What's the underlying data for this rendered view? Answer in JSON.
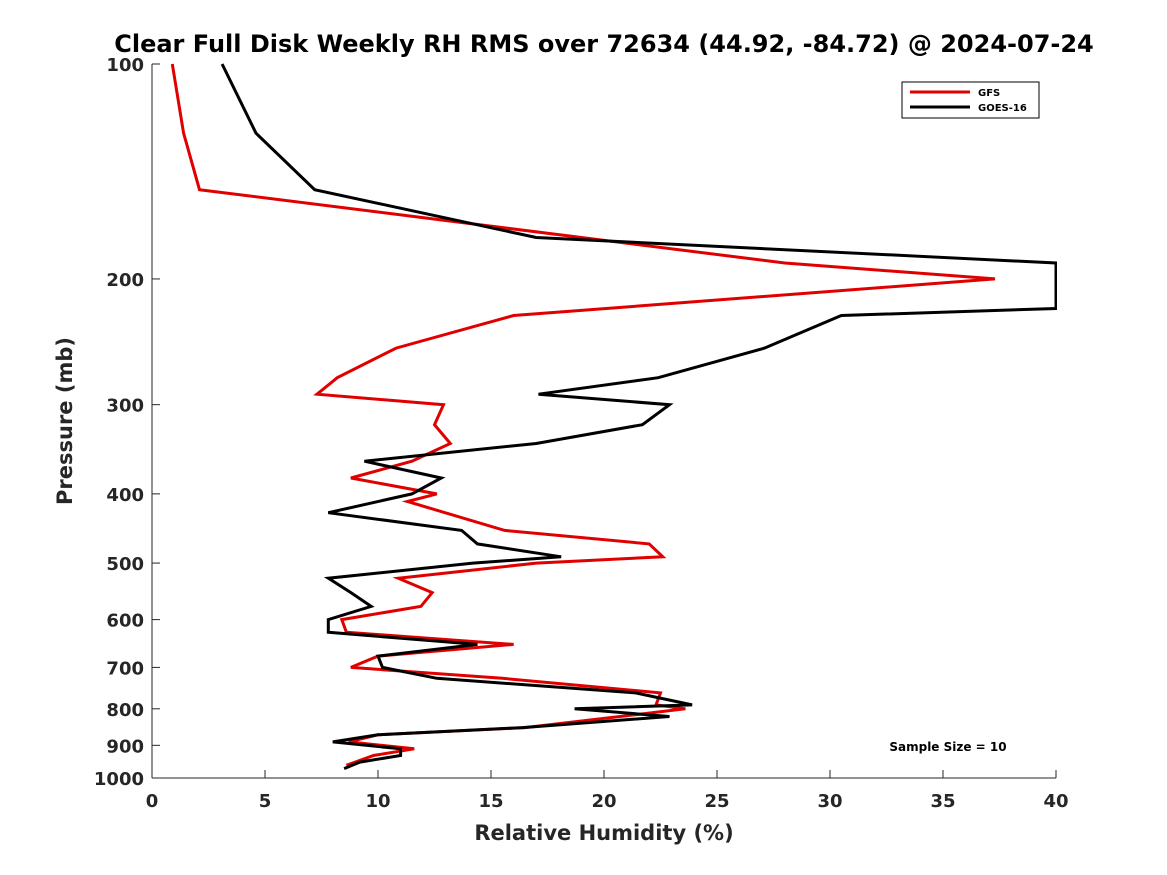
{
  "chart_data": {
    "type": "line",
    "title": "Clear Full Disk Weekly RH RMS over 72634 (44.92, -84.72) @ 2024-07-24",
    "xlabel": "Relative Humidity (%)",
    "ylabel": "Pressure (mb)",
    "xlim": [
      0,
      40
    ],
    "ylim": [
      100,
      1000
    ],
    "y_scale": "log",
    "x_ticks": [
      0,
      5,
      10,
      15,
      20,
      25,
      30,
      35,
      40
    ],
    "x_tick_labels": [
      "0",
      "5",
      "10",
      "15",
      "20",
      "25",
      "30",
      "35",
      "40"
    ],
    "y_ticks": [
      100,
      200,
      300,
      400,
      500,
      600,
      700,
      800,
      900,
      1000
    ],
    "y_tick_labels": [
      "100",
      "200",
      "300",
      "400",
      "500",
      "600",
      "700",
      "800",
      "900",
      "1000"
    ],
    "legend_position": "top-right",
    "annotation": "Sample Size = 10",
    "series": [
      {
        "name": "GFS",
        "color": "#e00000",
        "points": [
          [
            0.9,
            100
          ],
          [
            1.4,
            125
          ],
          [
            2.1,
            150
          ],
          [
            19,
            175
          ],
          [
            28,
            190
          ],
          [
            37.3,
            200
          ],
          [
            16,
            225
          ],
          [
            10.8,
            250
          ],
          [
            8.2,
            275
          ],
          [
            7.3,
            290
          ],
          [
            12.9,
            300
          ],
          [
            12.5,
            320
          ],
          [
            13.2,
            340
          ],
          [
            11.5,
            360
          ],
          [
            8.8,
            380
          ],
          [
            12.6,
            400
          ],
          [
            11.3,
            410
          ],
          [
            15.6,
            450
          ],
          [
            22,
            470
          ],
          [
            22.6,
            490
          ],
          [
            17,
            500
          ],
          [
            10.9,
            525
          ],
          [
            12.4,
            550
          ],
          [
            11.9,
            575
          ],
          [
            8.4,
            600
          ],
          [
            8.6,
            625
          ],
          [
            16,
            650
          ],
          [
            10,
            675
          ],
          [
            8.8,
            700
          ],
          [
            15.5,
            725
          ],
          [
            22.5,
            760
          ],
          [
            22.3,
            790
          ],
          [
            23.6,
            800
          ],
          [
            16.5,
            850
          ],
          [
            10,
            870
          ],
          [
            8.7,
            890
          ],
          [
            11.6,
            910
          ],
          [
            9.8,
            930
          ],
          [
            8.6,
            960
          ]
        ]
      },
      {
        "name": "GOES-16",
        "color": "#000000",
        "points": [
          [
            3.1,
            100
          ],
          [
            4.6,
            125
          ],
          [
            7.2,
            150
          ],
          [
            17,
            175
          ],
          [
            40,
            190
          ],
          [
            40,
            220
          ],
          [
            30.5,
            225
          ],
          [
            27.1,
            250
          ],
          [
            22.4,
            275
          ],
          [
            17.1,
            290
          ],
          [
            22.9,
            300
          ],
          [
            21.7,
            320
          ],
          [
            17,
            340
          ],
          [
            9.4,
            360
          ],
          [
            12.8,
            380
          ],
          [
            11.5,
            400
          ],
          [
            7.8,
            425
          ],
          [
            13.7,
            450
          ],
          [
            14.4,
            470
          ],
          [
            18.1,
            490
          ],
          [
            14.2,
            500
          ],
          [
            7.8,
            525
          ],
          [
            8.8,
            550
          ],
          [
            9.7,
            575
          ],
          [
            7.8,
            600
          ],
          [
            7.8,
            625
          ],
          [
            14.4,
            650
          ],
          [
            10,
            675
          ],
          [
            10.2,
            700
          ],
          [
            12.6,
            725
          ],
          [
            21.4,
            760
          ],
          [
            23.9,
            790
          ],
          [
            18.7,
            800
          ],
          [
            22.9,
            820
          ],
          [
            16.4,
            850
          ],
          [
            10,
            870
          ],
          [
            8,
            890
          ],
          [
            11,
            910
          ],
          [
            11,
            930
          ],
          [
            9.2,
            950
          ],
          [
            8.5,
            970
          ]
        ]
      }
    ]
  }
}
